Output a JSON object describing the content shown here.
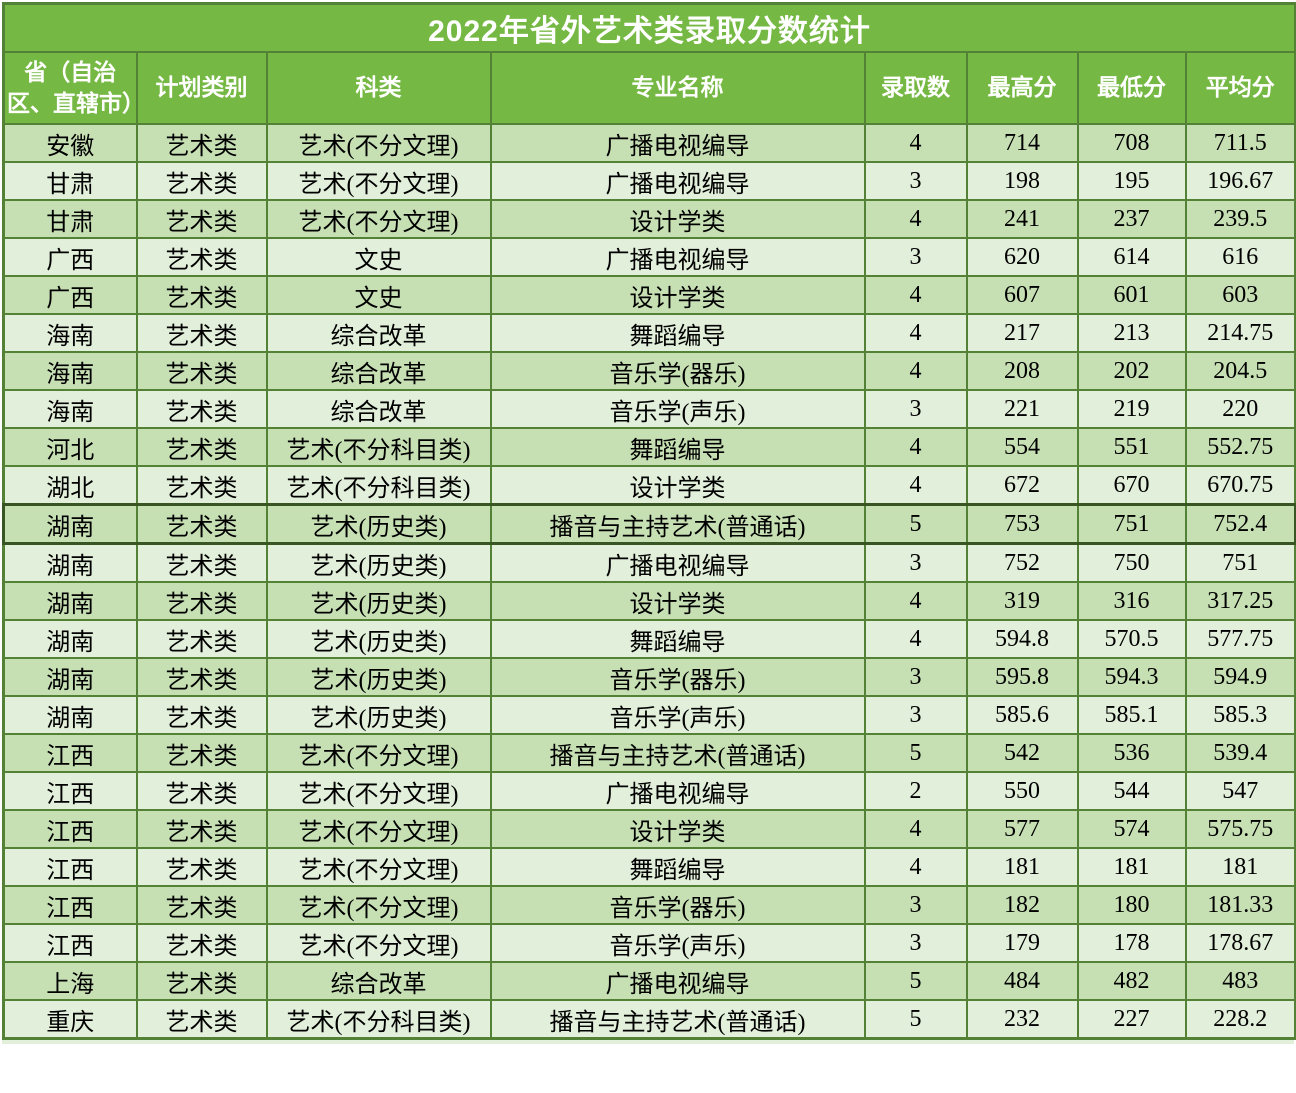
{
  "chart_data": {
    "type": "table",
    "title": "2022年省外艺术类录取分数统计",
    "columns": [
      "省（自治区、直辖市）",
      "计划类别",
      "科类",
      "专业名称",
      "录取数",
      "最高分",
      "最低分",
      "平均分"
    ],
    "rows": [
      [
        "安徽",
        "艺术类",
        "艺术(不分文理)",
        "广播电视编导",
        "4",
        "714",
        "708",
        "711.5"
      ],
      [
        "甘肃",
        "艺术类",
        "艺术(不分文理)",
        "广播电视编导",
        "3",
        "198",
        "195",
        "196.67"
      ],
      [
        "甘肃",
        "艺术类",
        "艺术(不分文理)",
        "设计学类",
        "4",
        "241",
        "237",
        "239.5"
      ],
      [
        "广西",
        "艺术类",
        "文史",
        "广播电视编导",
        "3",
        "620",
        "614",
        "616"
      ],
      [
        "广西",
        "艺术类",
        "文史",
        "设计学类",
        "4",
        "607",
        "601",
        "603"
      ],
      [
        "海南",
        "艺术类",
        "综合改革",
        "舞蹈编导",
        "4",
        "217",
        "213",
        "214.75"
      ],
      [
        "海南",
        "艺术类",
        "综合改革",
        "音乐学(器乐)",
        "4",
        "208",
        "202",
        "204.5"
      ],
      [
        "海南",
        "艺术类",
        "综合改革",
        "音乐学(声乐)",
        "3",
        "221",
        "219",
        "220"
      ],
      [
        "河北",
        "艺术类",
        "艺术(不分科目类)",
        "舞蹈编导",
        "4",
        "554",
        "551",
        "552.75"
      ],
      [
        "湖北",
        "艺术类",
        "艺术(不分科目类)",
        "设计学类",
        "4",
        "672",
        "670",
        "670.75"
      ],
      [
        "湖南",
        "艺术类",
        "艺术(历史类)",
        "播音与主持艺术(普通话)",
        "5",
        "753",
        "751",
        "752.4"
      ],
      [
        "湖南",
        "艺术类",
        "艺术(历史类)",
        "广播电视编导",
        "3",
        "752",
        "750",
        "751"
      ],
      [
        "湖南",
        "艺术类",
        "艺术(历史类)",
        "设计学类",
        "4",
        "319",
        "316",
        "317.25"
      ],
      [
        "湖南",
        "艺术类",
        "艺术(历史类)",
        "舞蹈编导",
        "4",
        "594.8",
        "570.5",
        "577.75"
      ],
      [
        "湖南",
        "艺术类",
        "艺术(历史类)",
        "音乐学(器乐)",
        "3",
        "595.8",
        "594.3",
        "594.9"
      ],
      [
        "湖南",
        "艺术类",
        "艺术(历史类)",
        "音乐学(声乐)",
        "3",
        "585.6",
        "585.1",
        "585.3"
      ],
      [
        "江西",
        "艺术类",
        "艺术(不分文理)",
        "播音与主持艺术(普通话)",
        "5",
        "542",
        "536",
        "539.4"
      ],
      [
        "江西",
        "艺术类",
        "艺术(不分文理)",
        "广播电视编导",
        "2",
        "550",
        "544",
        "547"
      ],
      [
        "江西",
        "艺术类",
        "艺术(不分文理)",
        "设计学类",
        "4",
        "577",
        "574",
        "575.75"
      ],
      [
        "江西",
        "艺术类",
        "艺术(不分文理)",
        "舞蹈编导",
        "4",
        "181",
        "181",
        "181"
      ],
      [
        "江西",
        "艺术类",
        "艺术(不分文理)",
        "音乐学(器乐)",
        "3",
        "182",
        "180",
        "181.33"
      ],
      [
        "江西",
        "艺术类",
        "艺术(不分文理)",
        "音乐学(声乐)",
        "3",
        "179",
        "178",
        "178.67"
      ],
      [
        "上海",
        "艺术类",
        "综合改革",
        "广播电视编导",
        "5",
        "484",
        "482",
        "483"
      ],
      [
        "重庆",
        "艺术类",
        "艺术(不分科目类)",
        "播音与主持艺术(普通话)",
        "5",
        "232",
        "227",
        "228.2"
      ]
    ],
    "selected_row_index": 10,
    "layout_hints": {
      "banding": "odd rows dark green, even rows light green",
      "grid": true
    }
  },
  "colors": {
    "header_green": "#75b843",
    "grid_border_green": "#538135",
    "band_dark": "#c6e0b4",
    "band_light": "#e2efda",
    "selection_outline": "#375623",
    "header_text": "#ffffff",
    "data_text": "#000000"
  }
}
